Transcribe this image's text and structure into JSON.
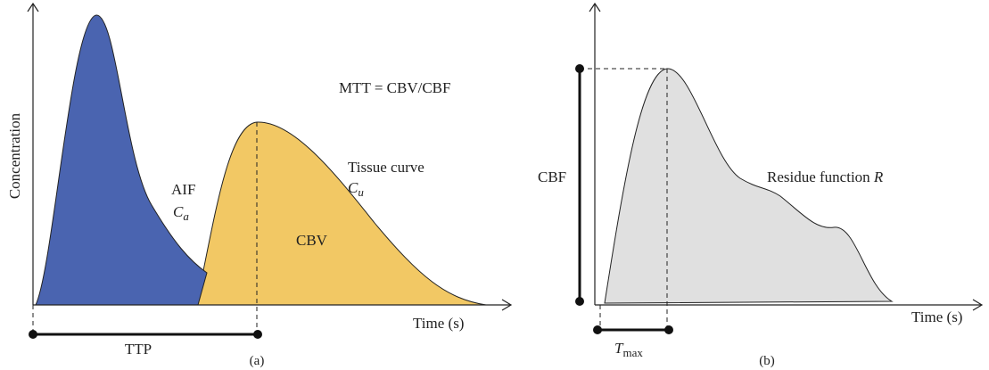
{
  "panel_a": {
    "y_axis_label": "Concentration",
    "formula": "MTT = CBV/CBF",
    "aif": {
      "label": "AIF",
      "symbol": "C",
      "subscript": "a"
    },
    "tissue": {
      "label": "Tissue curve",
      "symbol": "C",
      "subscript": "u"
    },
    "area_label": "CBV",
    "x_axis_label": "Time (s)",
    "interval_label": "TTP",
    "caption": "(a)"
  },
  "panel_b": {
    "height_label": "CBF",
    "curve": {
      "label": "Residue function",
      "symbol": "R"
    },
    "x_axis_label": "Time (s)",
    "interval": {
      "symbol": "T",
      "subscript": "max"
    },
    "caption": "(b)"
  }
}
